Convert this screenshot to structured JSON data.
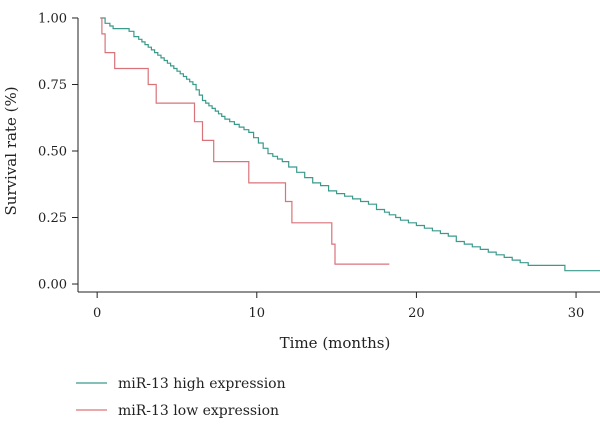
{
  "chart_data": {
    "type": "line",
    "subtype": "kaplan-meier step curve",
    "title": "",
    "xlabel": "Time (months)",
    "ylabel": "Survival rate (%)",
    "xlim": [
      -1.2,
      31.5
    ],
    "ylim": [
      -0.03,
      1.03
    ],
    "x_ticks": [
      0,
      10,
      20,
      30
    ],
    "x_tick_labels": [
      "0",
      "10",
      "20",
      "30"
    ],
    "y_ticks": [
      0.0,
      0.25,
      0.5,
      0.75,
      1.0
    ],
    "y_tick_labels": [
      "0.00",
      "0.25",
      "0.50",
      "0.75",
      "1.00"
    ],
    "grid": false,
    "legend_position": "bottom-left",
    "series": [
      {
        "name": "miR-13 high expression",
        "color": "#3a9a8c",
        "x": [
          0.2,
          0.5,
          0.8,
          1.0,
          1.7,
          2.0,
          2.3,
          2.6,
          2.8,
          3.0,
          3.2,
          3.4,
          3.6,
          3.8,
          4.0,
          4.2,
          4.4,
          4.6,
          4.8,
          5.0,
          5.2,
          5.4,
          5.6,
          5.8,
          6.0,
          6.2,
          6.4,
          6.6,
          6.8,
          7.0,
          7.2,
          7.4,
          7.6,
          7.8,
          8.0,
          8.3,
          8.6,
          8.9,
          9.2,
          9.5,
          9.8,
          10.1,
          10.4,
          10.7,
          11.0,
          11.3,
          11.6,
          12.0,
          12.5,
          13.0,
          13.5,
          14.0,
          14.5,
          15.0,
          15.5,
          16.0,
          16.5,
          17.0,
          17.5,
          18.0,
          18.3,
          18.7,
          19.0,
          19.5,
          20.0,
          20.5,
          21.0,
          21.5,
          22.0,
          22.5,
          23.0,
          23.5,
          24.0,
          24.5,
          25.0,
          25.5,
          26.0,
          26.5,
          27.0,
          27.5,
          29.3,
          31.5
        ],
        "y": [
          1.0,
          0.98,
          0.97,
          0.96,
          0.96,
          0.95,
          0.93,
          0.92,
          0.91,
          0.9,
          0.89,
          0.88,
          0.87,
          0.86,
          0.85,
          0.84,
          0.83,
          0.82,
          0.81,
          0.8,
          0.79,
          0.78,
          0.77,
          0.76,
          0.75,
          0.73,
          0.71,
          0.69,
          0.68,
          0.67,
          0.66,
          0.65,
          0.64,
          0.63,
          0.62,
          0.61,
          0.6,
          0.59,
          0.58,
          0.57,
          0.55,
          0.53,
          0.51,
          0.49,
          0.48,
          0.47,
          0.46,
          0.44,
          0.42,
          0.4,
          0.38,
          0.37,
          0.35,
          0.34,
          0.33,
          0.32,
          0.31,
          0.3,
          0.28,
          0.27,
          0.26,
          0.25,
          0.24,
          0.23,
          0.22,
          0.21,
          0.2,
          0.19,
          0.18,
          0.16,
          0.15,
          0.14,
          0.13,
          0.12,
          0.11,
          0.1,
          0.09,
          0.08,
          0.07,
          0.07,
          0.05,
          0.05
        ]
      },
      {
        "name": "miR-13 low expression",
        "color": "#d9737a",
        "x": [
          0.2,
          0.3,
          0.5,
          1.1,
          3.2,
          3.7,
          6.1,
          6.6,
          7.3,
          9.5,
          11.8,
          12.2,
          14.7,
          14.9,
          18.3
        ],
        "y": [
          1.0,
          0.94,
          0.87,
          0.81,
          0.75,
          0.68,
          0.61,
          0.54,
          0.46,
          0.38,
          0.31,
          0.23,
          0.15,
          0.075,
          0.075
        ]
      }
    ]
  }
}
